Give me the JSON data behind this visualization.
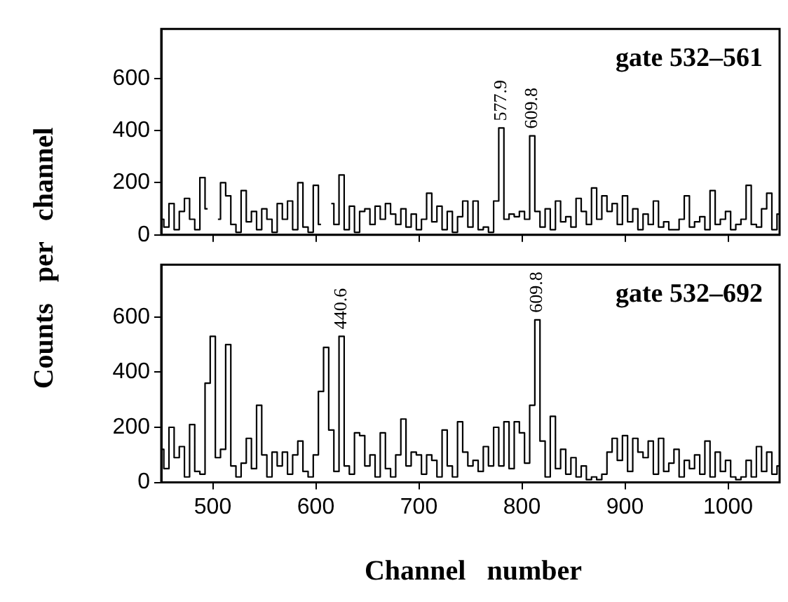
{
  "chart_data": [
    {
      "type": "step",
      "ylabel": "Counts per channel",
      "annotations": [
        "gate 532–561",
        {
          "text": "577.9",
          "x": 780,
          "y": 410
        },
        {
          "text": "609.8",
          "x": 810,
          "y": 380
        }
      ],
      "xlim": [
        450,
        1050
      ],
      "xticks": [
        500,
        600,
        700,
        800,
        900,
        1000
      ],
      "ylim": [
        0,
        790
      ],
      "yticks": [
        0,
        200,
        400,
        600
      ],
      "tick_labels": "y",
      "grid": false,
      "legend": false,
      "marker": "none",
      "series": [
        {
          "color": "#000000",
          "x": [
            450,
            455,
            460,
            465,
            470,
            475,
            480,
            485,
            490,
            495,
            500,
            505,
            510,
            515,
            520,
            525,
            530,
            535,
            540,
            545,
            550,
            555,
            560,
            565,
            570,
            575,
            580,
            585,
            590,
            595,
            600,
            605,
            610,
            615,
            620,
            625,
            630,
            635,
            640,
            645,
            650,
            655,
            660,
            665,
            670,
            675,
            680,
            685,
            690,
            695,
            700,
            705,
            710,
            715,
            720,
            725,
            730,
            735,
            740,
            745,
            750,
            755,
            760,
            765,
            770,
            775,
            780,
            785,
            790,
            795,
            800,
            805,
            810,
            815,
            820,
            825,
            830,
            835,
            840,
            845,
            850,
            855,
            860,
            865,
            870,
            875,
            880,
            885,
            890,
            895,
            900,
            905,
            910,
            915,
            920,
            925,
            930,
            935,
            940,
            945,
            950,
            955,
            960,
            965,
            970,
            975,
            980,
            985,
            990,
            995,
            1000,
            1005,
            1010,
            1015,
            1020,
            1025,
            1030,
            1035,
            1040,
            1045,
            1050
          ],
          "values": [
            60,
            30,
            120,
            20,
            90,
            140,
            60,
            20,
            220,
            100,
            null,
            60,
            200,
            150,
            40,
            10,
            170,
            50,
            90,
            20,
            100,
            60,
            10,
            120,
            60,
            130,
            20,
            200,
            30,
            10,
            190,
            40,
            null,
            120,
            40,
            230,
            20,
            110,
            10,
            90,
            100,
            40,
            110,
            60,
            120,
            80,
            40,
            100,
            30,
            80,
            20,
            60,
            160,
            50,
            110,
            20,
            90,
            10,
            70,
            130,
            30,
            130,
            20,
            30,
            10,
            130,
            410,
            60,
            80,
            70,
            90,
            60,
            380,
            90,
            30,
            100,
            20,
            130,
            50,
            70,
            30,
            140,
            90,
            40,
            180,
            60,
            150,
            90,
            120,
            40,
            150,
            50,
            100,
            20,
            80,
            40,
            130,
            30,
            50,
            20,
            20,
            60,
            150,
            30,
            50,
            70,
            20,
            170,
            40,
            60,
            90,
            20,
            40,
            60,
            190,
            40,
            30,
            100,
            160,
            20,
            80
          ]
        }
      ]
    },
    {
      "type": "step",
      "xlabel": "Channel number",
      "annotations": [
        "gate 532–692",
        {
          "text": "440.6",
          "x": 625,
          "y": 530
        },
        {
          "text": "609.8",
          "x": 815,
          "y": 590
        }
      ],
      "xlim": [
        450,
        1050
      ],
      "xticks": [
        500,
        600,
        700,
        800,
        900,
        1000
      ],
      "ylim": [
        0,
        790
      ],
      "yticks": [
        0,
        200,
        400,
        600
      ],
      "grid": false,
      "legend": false,
      "marker": "none",
      "series": [
        {
          "color": "#000000",
          "x": [
            450,
            455,
            460,
            465,
            470,
            475,
            480,
            485,
            490,
            495,
            500,
            505,
            510,
            515,
            520,
            525,
            530,
            535,
            540,
            545,
            550,
            555,
            560,
            565,
            570,
            575,
            580,
            585,
            590,
            595,
            600,
            605,
            610,
            615,
            620,
            625,
            630,
            635,
            640,
            645,
            650,
            655,
            660,
            665,
            670,
            675,
            680,
            685,
            690,
            695,
            700,
            705,
            710,
            715,
            720,
            725,
            730,
            735,
            740,
            745,
            750,
            755,
            760,
            765,
            770,
            775,
            780,
            785,
            790,
            795,
            800,
            805,
            810,
            815,
            820,
            825,
            830,
            835,
            840,
            845,
            850,
            855,
            860,
            865,
            870,
            875,
            880,
            885,
            890,
            895,
            900,
            905,
            910,
            915,
            920,
            925,
            930,
            935,
            940,
            945,
            950,
            955,
            960,
            965,
            970,
            975,
            980,
            985,
            990,
            995,
            1000,
            1005,
            1010,
            1015,
            1020,
            1025,
            1030,
            1035,
            1040,
            1045,
            1050
          ],
          "values": [
            120,
            50,
            200,
            90,
            130,
            20,
            210,
            40,
            30,
            360,
            530,
            90,
            120,
            500,
            60,
            20,
            70,
            160,
            50,
            280,
            100,
            20,
            110,
            60,
            110,
            30,
            100,
            150,
            40,
            20,
            100,
            330,
            490,
            190,
            40,
            530,
            60,
            30,
            180,
            170,
            60,
            100,
            20,
            180,
            50,
            20,
            100,
            230,
            60,
            110,
            100,
            30,
            100,
            80,
            20,
            190,
            60,
            20,
            220,
            110,
            60,
            80,
            40,
            130,
            60,
            200,
            60,
            220,
            50,
            220,
            180,
            70,
            280,
            590,
            150,
            20,
            240,
            50,
            120,
            30,
            90,
            20,
            60,
            10,
            20,
            10,
            30,
            110,
            160,
            80,
            170,
            40,
            160,
            110,
            90,
            150,
            30,
            160,
            40,
            70,
            120,
            20,
            80,
            50,
            100,
            30,
            150,
            20,
            110,
            40,
            80,
            20,
            10,
            20,
            80,
            20,
            130,
            40,
            110,
            30,
            60
          ]
        }
      ]
    }
  ]
}
